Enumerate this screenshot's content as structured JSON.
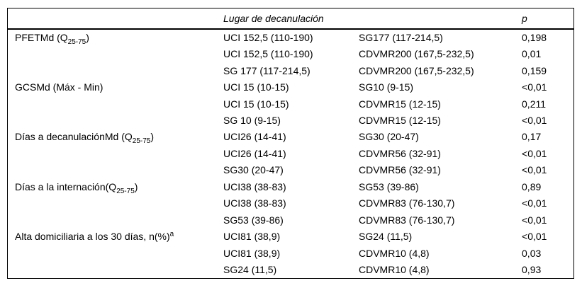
{
  "colors": {
    "background": "#ffffff",
    "text": "#000000",
    "border": "#000000"
  },
  "table": {
    "header": {
      "lugar": "Lugar de decanulación",
      "p": "p"
    },
    "groups": [
      {
        "label": {
          "pre": "PFETMd (Q",
          "sub": "25-75",
          "post": ")",
          "sup": ""
        },
        "rows": [
          {
            "a": "UCI 152,5 (110-190)",
            "b": "SG177 (117-214,5)",
            "p": "0,198"
          },
          {
            "a": "UCI 152,5 (110-190)",
            "b": "CDVMR200 (167,5-232,5)",
            "p": "0,01"
          },
          {
            "a": "SG 177 (117-214,5)",
            "b": "CDVMR200 (167,5-232,5)",
            "p": "0,159"
          }
        ]
      },
      {
        "label": {
          "pre": "GCSMd (Máx - Min)",
          "sub": "",
          "post": "",
          "sup": ""
        },
        "rows": [
          {
            "a": "UCI 15 (10-15)",
            "b": "SG10 (9-15)",
            "p": "<0,01"
          },
          {
            "a": "UCI 15 (10-15)",
            "b": "CDVMR15 (12-15)",
            "p": "0,211"
          },
          {
            "a": "SG 10 (9-15)",
            "b": "CDVMR15 (12-15)",
            "p": "<0,01"
          }
        ]
      },
      {
        "label": {
          "pre": "Días a decanulaciónMd (Q",
          "sub": "25-75",
          "post": ")",
          "sup": ""
        },
        "rows": [
          {
            "a": "UCI26 (14-41)",
            "b": "SG30 (20-47)",
            "p": "0,17"
          },
          {
            "a": "UCI26 (14-41)",
            "b": "CDVMR56 (32-91)",
            "p": "<0,01"
          },
          {
            "a": "SG30 (20-47)",
            "b": "CDVMR56 (32-91)",
            "p": "<0,01"
          }
        ]
      },
      {
        "label": {
          "pre": "Días a la internación(Q",
          "sub": "25-75",
          "post": ")",
          "sup": ""
        },
        "rows": [
          {
            "a": "UCI38 (38-83)",
            "b": "SG53 (39-86)",
            "p": "0,89"
          },
          {
            "a": "UCI38 (38-83)",
            "b": "CDVMR83 (76-130,7)",
            "p": "<0,01"
          },
          {
            "a": "SG53 (39-86)",
            "b": "CDVMR83 (76-130,7)",
            "p": "<0,01"
          }
        ]
      },
      {
        "label": {
          "pre": "Alta domiciliaria a los 30 días, n(%)",
          "sub": "",
          "post": "",
          "sup": "a"
        },
        "rows": [
          {
            "a": "UCI81 (38,9)",
            "b": "SG24 (11,5)",
            "p": "<0,01"
          },
          {
            "a": "UCI81 (38,9)",
            "b": "CDVMR10 (4,8)",
            "p": "0,03"
          },
          {
            "a": "SG24 (11,5)",
            "b": "CDVMR10 (4,8)",
            "p": "0,93"
          }
        ]
      }
    ]
  }
}
